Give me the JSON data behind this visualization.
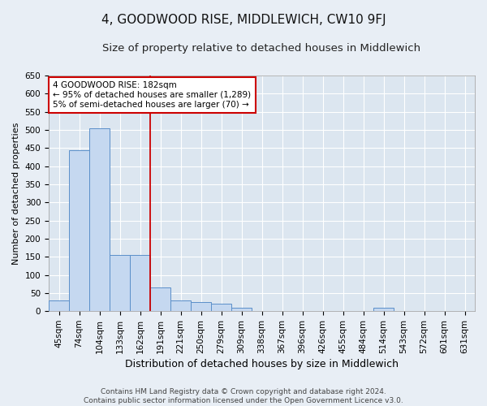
{
  "title": "4, GOODWOOD RISE, MIDDLEWICH, CW10 9FJ",
  "subtitle": "Size of property relative to detached houses in Middlewich",
  "xlabel": "Distribution of detached houses by size in Middlewich",
  "ylabel": "Number of detached properties",
  "categories": [
    "45sqm",
    "74sqm",
    "104sqm",
    "133sqm",
    "162sqm",
    "191sqm",
    "221sqm",
    "250sqm",
    "279sqm",
    "309sqm",
    "338sqm",
    "367sqm",
    "396sqm",
    "426sqm",
    "455sqm",
    "484sqm",
    "514sqm",
    "543sqm",
    "572sqm",
    "601sqm",
    "631sqm"
  ],
  "values": [
    30,
    445,
    505,
    155,
    155,
    65,
    30,
    25,
    20,
    10,
    0,
    0,
    0,
    0,
    0,
    0,
    10,
    0,
    0,
    0,
    0
  ],
  "bar_color": "#c5d8f0",
  "bar_edge_color": "#5b8fc9",
  "bar_linewidth": 0.7,
  "vline_color": "#cc0000",
  "vline_linewidth": 1.3,
  "vline_x": 4.5,
  "annotation_box_text": "4 GOODWOOD RISE: 182sqm\n← 95% of detached houses are smaller (1,289)\n5% of semi-detached houses are larger (70) →",
  "annotation_box_color": "#cc0000",
  "annotation_box_facecolor": "white",
  "ylim": [
    0,
    650
  ],
  "yticks": [
    0,
    50,
    100,
    150,
    200,
    250,
    300,
    350,
    400,
    450,
    500,
    550,
    600,
    650
  ],
  "background_color": "#e8eef5",
  "plot_bg_color": "#dce6f0",
  "grid_color": "white",
  "footer_line1": "Contains HM Land Registry data © Crown copyright and database right 2024.",
  "footer_line2": "Contains public sector information licensed under the Open Government Licence v3.0.",
  "title_fontsize": 11,
  "subtitle_fontsize": 9.5,
  "xlabel_fontsize": 9,
  "ylabel_fontsize": 8,
  "tick_fontsize": 7.5,
  "annotation_fontsize": 7.5,
  "footer_fontsize": 6.5
}
